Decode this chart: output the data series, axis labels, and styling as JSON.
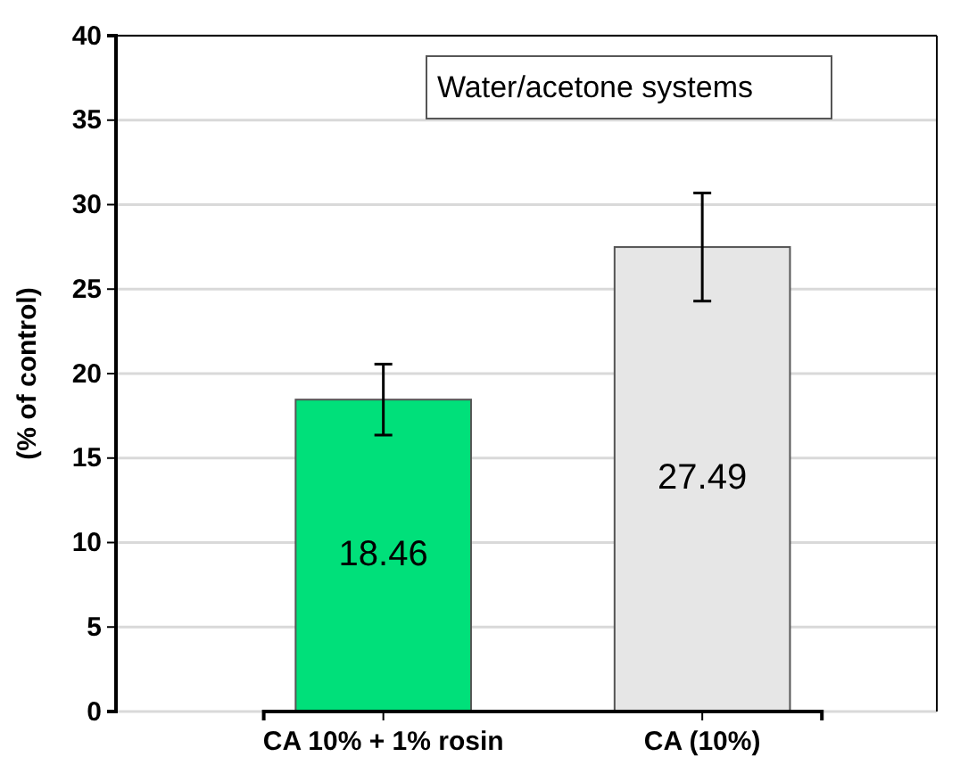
{
  "chart_data": {
    "type": "bar",
    "ylabel": "(% of control)",
    "categories": [
      "CA 10% + 1% rosin",
      "CA (10%)"
    ],
    "values": [
      18.46,
      27.49
    ],
    "colors": [
      "#00e07a",
      "#e6e6e6"
    ],
    "errors": [
      2.1,
      3.2
    ],
    "ylim": [
      0,
      40
    ],
    "yticks": [
      0,
      5,
      10,
      15,
      20,
      25,
      30,
      35,
      40
    ],
    "grid": "y",
    "data_labels": true,
    "annotations": [
      "Water/acetone systems"
    ]
  }
}
